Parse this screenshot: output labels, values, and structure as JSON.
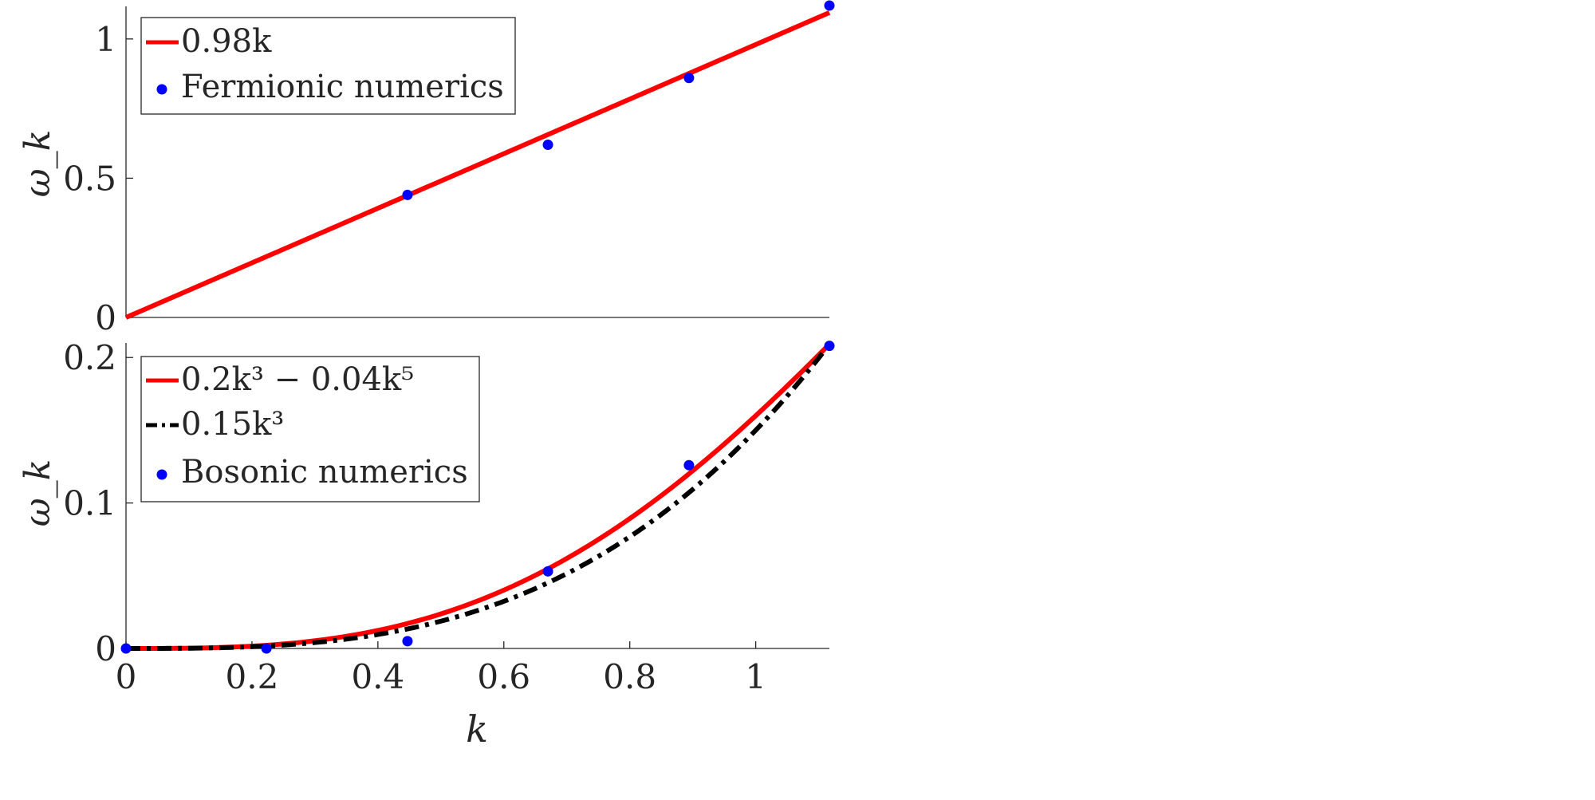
{
  "chart_data": [
    {
      "type": "line",
      "panel": "top",
      "title": "",
      "xlabel": "",
      "ylabel": "ω_k",
      "xlim": [
        0,
        1.117
      ],
      "ylim": [
        0,
        1.117
      ],
      "yticks": [
        0,
        0.5,
        1
      ],
      "ytick_labels": [
        "0",
        "0.5",
        "1"
      ],
      "xticks": [],
      "grid": false,
      "legend_position": "top-left",
      "series": [
        {
          "name": "0.98k",
          "kind": "function",
          "formula": "0.98*k",
          "color": "#ff0000",
          "style": "solid"
        },
        {
          "name": "Fermionic numerics",
          "kind": "points",
          "color": "#0000ff",
          "x": [
            0.447,
            0.67,
            0.894,
            1.117
          ],
          "y": [
            0.44,
            0.62,
            0.86,
            1.12
          ]
        }
      ]
    },
    {
      "type": "line",
      "panel": "bottom",
      "title": "",
      "xlabel": "k",
      "ylabel": "ω_k",
      "xlim": [
        0,
        1.117
      ],
      "ylim": [
        0,
        0.21
      ],
      "xticks": [
        0,
        0.2,
        0.4,
        0.6,
        0.8,
        1
      ],
      "xtick_labels": [
        "0",
        "0.2",
        "0.4",
        "0.6",
        "0.8",
        "1"
      ],
      "yticks": [
        0,
        0.1,
        0.2
      ],
      "ytick_labels": [
        "0",
        "0.1",
        "0.2"
      ],
      "grid": false,
      "legend_position": "top-left",
      "series": [
        {
          "name": "0.2k³ − 0.04k⁵",
          "kind": "function",
          "formula": "0.2*k^3-0.04*k^5",
          "color": "#ff0000",
          "style": "solid"
        },
        {
          "name": "0.15k³",
          "kind": "function",
          "formula": "0.15*k^3",
          "color": "#000000",
          "style": "dash-dot"
        },
        {
          "name": "Bosonic numerics",
          "kind": "points",
          "color": "#0000ff",
          "x": [
            0,
            0.223,
            0.447,
            0.67,
            0.894,
            1.117
          ],
          "y": [
            0,
            0,
            0.005,
            0.053,
            0.126,
            0.208
          ]
        }
      ]
    }
  ]
}
